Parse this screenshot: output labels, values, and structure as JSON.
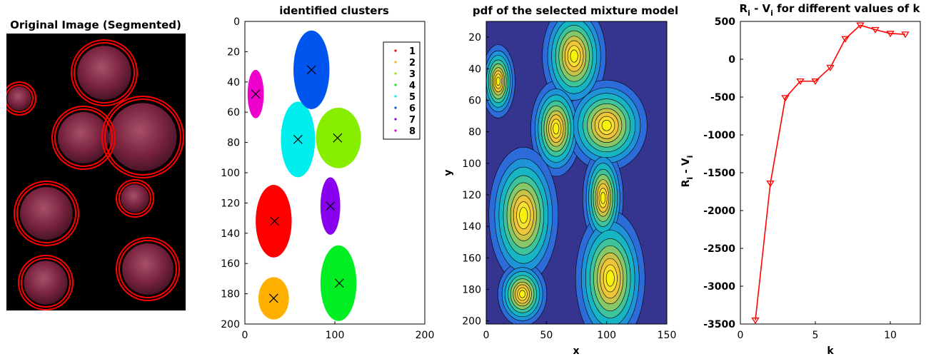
{
  "chart_data": [
    {
      "type": "other",
      "panel": "photo",
      "title": "Original Image (Segmented)",
      "description": "Segmented photograph of 8 apples on black background, each circled in red",
      "accent_color": "#ff0000"
    },
    {
      "type": "scatter",
      "title": "identified clusters",
      "xlabel": "",
      "ylabel": "",
      "xlim": [
        0,
        200
      ],
      "ylim": [
        200,
        0
      ],
      "x_ticks": [
        "0",
        "100",
        "200"
      ],
      "y_ticks": [
        "0",
        "20",
        "40",
        "60",
        "80",
        "100",
        "120",
        "140",
        "160",
        "180",
        "200"
      ],
      "legend": {
        "placement": "top-right",
        "entries": [
          "1",
          "2",
          "3",
          "4",
          "5",
          "6",
          "7",
          "8"
        ],
        "colors": [
          "#ff0000",
          "#ffb000",
          "#88ee00",
          "#00ee22",
          "#00eeee",
          "#0055ee",
          "#8800ee",
          "#ee00cc"
        ]
      },
      "centroids": [
        {
          "x": 33,
          "y": 132
        },
        {
          "x": 32,
          "y": 183
        },
        {
          "x": 103,
          "y": 77
        },
        {
          "x": 105,
          "y": 173
        },
        {
          "x": 59,
          "y": 78
        },
        {
          "x": 74,
          "y": 32
        },
        {
          "x": 95,
          "y": 122
        },
        {
          "x": 12,
          "y": 48
        }
      ],
      "clusters": [
        {
          "cx": 32,
          "cy": 132,
          "rx": 20,
          "ry": 24
        },
        {
          "cx": 32,
          "cy": 183,
          "rx": 17,
          "ry": 14
        },
        {
          "cx": 104,
          "cy": 77,
          "rx": 25,
          "ry": 20
        },
        {
          "cx": 104,
          "cy": 173,
          "rx": 20,
          "ry": 25
        },
        {
          "cx": 59,
          "cy": 78,
          "rx": 19,
          "ry": 25
        },
        {
          "cx": 74,
          "cy": 32,
          "rx": 20,
          "ry": 26
        },
        {
          "cx": 95,
          "cy": 122,
          "rx": 11,
          "ry": 19
        },
        {
          "cx": 12,
          "cy": 48,
          "rx": 9,
          "ry": 16
        }
      ],
      "marker": "x"
    },
    {
      "type": "contour",
      "title": "pdf of the selected mixture model",
      "xlabel": "x",
      "ylabel": "y",
      "xlim": [
        0,
        150
      ],
      "ylim": [
        202,
        10
      ],
      "x_ticks": [
        "0",
        "50",
        "100",
        "150"
      ],
      "y_ticks": [
        "20",
        "40",
        "60",
        "80",
        "100",
        "120",
        "140",
        "160",
        "180",
        "200"
      ],
      "background_color": "#35358f",
      "components": [
        {
          "x": 73,
          "y": 32,
          "sx": 11,
          "sy": 14,
          "w": 1.0
        },
        {
          "x": 10,
          "y": 48,
          "sx": 6,
          "sy": 10,
          "w": 0.9
        },
        {
          "x": 58,
          "y": 78,
          "sx": 9,
          "sy": 13,
          "w": 0.9
        },
        {
          "x": 100,
          "y": 76,
          "sx": 14,
          "sy": 12,
          "w": 1.0
        },
        {
          "x": 97,
          "y": 122,
          "sx": 7,
          "sy": 13,
          "w": 1.0
        },
        {
          "x": 31,
          "y": 133,
          "sx": 12,
          "sy": 18,
          "w": 1.0
        },
        {
          "x": 103,
          "y": 173,
          "sx": 12,
          "sy": 18,
          "w": 1.0
        },
        {
          "x": 30,
          "y": 183,
          "sx": 9,
          "sy": 9,
          "w": 0.8
        }
      ]
    },
    {
      "type": "line",
      "title": "R_i - V_i for different values of k",
      "title_parts": [
        "R",
        "i",
        " - V",
        "i",
        " for different values of k"
      ],
      "xlabel": "k",
      "ylabel_parts": [
        "R",
        "i",
        " - V",
        "i"
      ],
      "xlim": [
        0,
        12
      ],
      "ylim": [
        -3500,
        500
      ],
      "x_ticks": [
        "0",
        "5",
        "10"
      ],
      "y_ticks": [
        "500",
        "0",
        "-500",
        "-1000",
        "-1500",
        "-2000",
        "-2500",
        "-3000",
        "-3500"
      ],
      "series": [
        {
          "x": [
            1,
            2,
            3,
            4,
            5,
            6,
            7,
            8,
            9,
            10,
            11
          ],
          "values": [
            -3450,
            -1640,
            -510,
            -290,
            -290,
            -110,
            270,
            450,
            390,
            340,
            330
          ],
          "color": "#ff0000",
          "marker": "triangle-down"
        }
      ]
    }
  ]
}
